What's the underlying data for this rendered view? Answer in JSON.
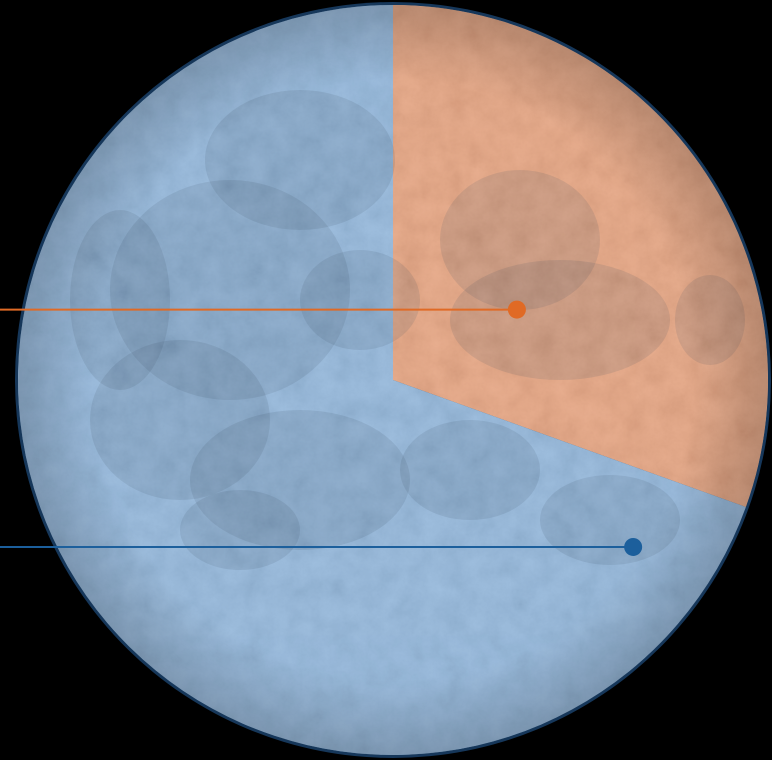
{
  "colors": {
    "background": "#000000",
    "rim": "#16375a",
    "crater_dark": "#3f5f7f",
    "crater_light": "#ffffff"
  },
  "chart_data": {
    "type": "pie",
    "title": "",
    "start_angle_deg": 0,
    "direction": "clockwise",
    "legend": "none",
    "slices": [
      {
        "value": 30.5,
        "color": "#e9a27c",
        "marker_color": "#e06a25",
        "label": ""
      },
      {
        "value": 69.5,
        "color": "#8fb6dd",
        "marker_color": "#1c5f9c",
        "label": ""
      }
    ]
  }
}
